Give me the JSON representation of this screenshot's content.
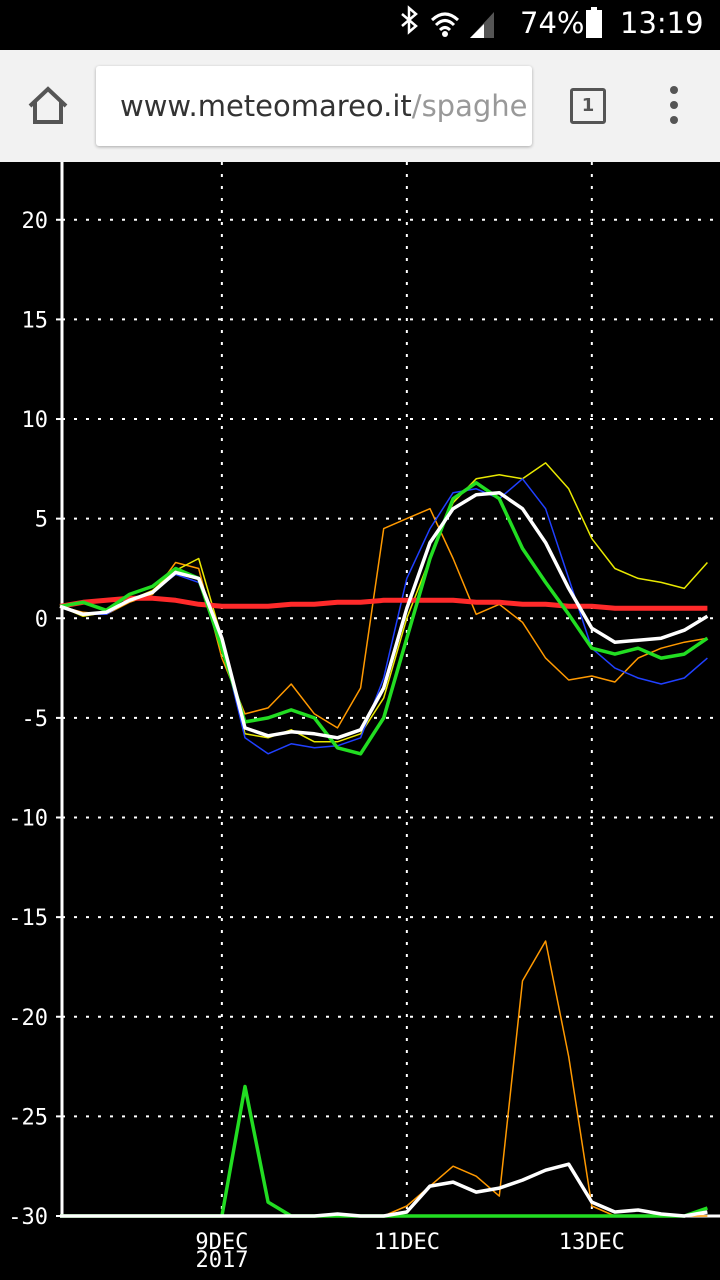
{
  "status_bar": {
    "battery": "74%",
    "time": "13:19"
  },
  "browser": {
    "url_domain": "www.meteomareo.it",
    "url_path": "/spaghe",
    "tab_count": "1"
  },
  "chart_data": {
    "type": "line",
    "x": [
      7.25,
      7.5,
      7.75,
      8,
      8.25,
      8.5,
      8.75,
      9,
      9.25,
      9.5,
      9.75,
      10,
      10.25,
      10.5,
      10.75,
      11,
      11.25,
      11.5,
      11.75,
      12,
      12.25,
      12.5,
      12.75,
      13,
      13.25,
      13.5,
      13.75,
      14,
      14.25
    ],
    "xlim": [
      7.25,
      14.375
    ],
    "xticks": [
      {
        "value": 9,
        "label": "9DEC"
      },
      {
        "value": 11,
        "label": "11DEC"
      },
      {
        "value": 13,
        "label": "13DEC"
      }
    ],
    "x_year_label": "2017",
    "ylim": [
      -30,
      22.9
    ],
    "yticks": [
      20,
      15,
      10,
      5,
      0,
      -5,
      -10,
      -15,
      -20,
      -25,
      -30
    ],
    "grid": true,
    "series": [
      {
        "color": "#ff9900",
        "line_width": 1.5,
        "values": [
          0.6,
          0.3,
          0.2,
          0.8,
          1.2,
          2.8,
          2.5,
          -2.0,
          -4.8,
          -4.5,
          -3.3,
          -4.8,
          -5.5,
          -3.5,
          4.5,
          5.0,
          5.5,
          3.0,
          0.2,
          0.7,
          -0.2,
          -2.0,
          -3.1,
          -2.9,
          -3.2,
          -2.0,
          -1.5,
          -1.2,
          -1.0
        ]
      },
      {
        "color": "#e8e800",
        "line_width": 1.5,
        "values": [
          0.6,
          0.1,
          0.3,
          0.9,
          1.4,
          2.4,
          3.0,
          -1.0,
          -5.8,
          -6.0,
          -5.6,
          -6.2,
          -6.2,
          -5.8,
          -4.0,
          0.0,
          3.0,
          5.8,
          7.0,
          7.2,
          7.0,
          7.8,
          6.5,
          4.0,
          2.5,
          2.0,
          1.8,
          1.5,
          2.8
        ]
      },
      {
        "color": "#2040ff",
        "line_width": 1.5,
        "values": [
          0.6,
          0.2,
          0.2,
          0.9,
          1.3,
          2.2,
          1.8,
          -1.2,
          -6.0,
          -6.8,
          -6.3,
          -6.5,
          -6.4,
          -6.0,
          -3.0,
          2.0,
          4.5,
          6.3,
          6.5,
          6.0,
          7.0,
          5.5,
          2.0,
          -1.5,
          -2.5,
          -3.0,
          -3.3,
          -3.0,
          -2.0
        ]
      },
      {
        "color": "#ff9900",
        "line_width": 1.5,
        "values": [
          -30,
          -30,
          -30,
          -30,
          -30,
          -30,
          -30,
          -30,
          -30,
          -30,
          -30,
          -30,
          -30,
          -30,
          -30,
          -29.5,
          -28.5,
          -27.5,
          -28,
          -29,
          -18.2,
          -16.2,
          -22,
          -29.5,
          -30,
          -30,
          -30,
          -30,
          -30
        ]
      },
      {
        "color": "#ff2a2a",
        "line_width": 5,
        "values": [
          0.6,
          0.8,
          0.9,
          1.0,
          1.0,
          0.9,
          0.7,
          0.6,
          0.6,
          0.6,
          0.7,
          0.7,
          0.8,
          0.8,
          0.9,
          0.9,
          0.9,
          0.9,
          0.8,
          0.8,
          0.7,
          0.7,
          0.6,
          0.6,
          0.5,
          0.5,
          0.5,
          0.5,
          0.5
        ]
      },
      {
        "color": "#22dd22",
        "line_width": 3.5,
        "values": [
          0.6,
          0.8,
          0.4,
          1.2,
          1.6,
          2.5,
          2.0,
          -1.5,
          -5.2,
          -5.0,
          -4.6,
          -5.0,
          -6.5,
          -6.8,
          -5.0,
          -1.0,
          3.0,
          6.0,
          6.8,
          6.0,
          3.5,
          1.8,
          0.2,
          -1.5,
          -1.8,
          -1.5,
          -2.0,
          -1.8,
          -1.0
        ]
      },
      {
        "color": "#22dd22",
        "line_width": 3.5,
        "values": [
          -30,
          -30,
          -30,
          -30,
          -30,
          -30,
          -30,
          -30,
          -23.5,
          -29.3,
          -30,
          -30,
          -30,
          -30,
          -30,
          -30,
          -30,
          -30,
          -30,
          -30,
          -30,
          -30,
          -30,
          -30,
          -30,
          -30,
          -30,
          -30,
          -29.6
        ]
      },
      {
        "color": "#ffffff",
        "line_width": 3.5,
        "values": [
          0.6,
          0.2,
          0.3,
          0.9,
          1.3,
          2.3,
          2.0,
          -1.0,
          -5.5,
          -5.9,
          -5.7,
          -5.8,
          -6.0,
          -5.6,
          -3.5,
          0.5,
          3.8,
          5.5,
          6.2,
          6.3,
          5.5,
          3.8,
          1.5,
          -0.5,
          -1.2,
          -1.1,
          -1.0,
          -0.6,
          0.1
        ]
      },
      {
        "color": "#ffffff",
        "line_width": 3.5,
        "values": [
          -30,
          -30,
          -30,
          -30,
          -30,
          -30,
          -30,
          -30,
          -30,
          -30,
          -30,
          -30,
          -29.9,
          -30,
          -30,
          -29.8,
          -28.5,
          -28.3,
          -28.8,
          -28.6,
          -28.2,
          -27.7,
          -27.4,
          -29.3,
          -29.8,
          -29.7,
          -29.9,
          -30,
          -29.8
        ]
      }
    ]
  }
}
